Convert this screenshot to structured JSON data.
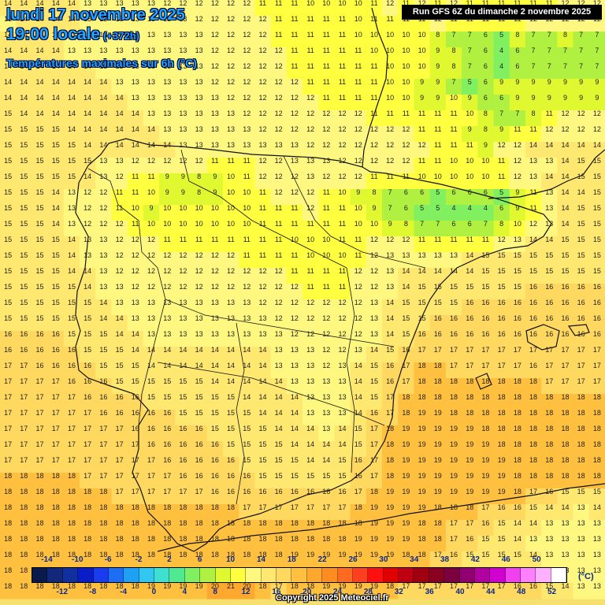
{
  "header": {
    "date": "lundi 17 novembre 2025",
    "time": "19:00 locale",
    "offset": "(+372h)",
    "parameter": "Températures maximales sur 6h (°C)",
    "run": "Run GFS 6Z du dimanche 2 novembre 2025"
  },
  "legend": {
    "unit": "(°C)",
    "top_labels": [
      "-14",
      "-10",
      "-6",
      "-2",
      "2",
      "6",
      "10",
      "14",
      "18",
      "22",
      "26",
      "30",
      "34",
      "38",
      "42",
      "46",
      "50"
    ],
    "bottom_labels": [
      "-12",
      "-8",
      "-4",
      "0",
      "4",
      "8",
      "12",
      "16",
      "20",
      "24",
      "28",
      "32",
      "36",
      "40",
      "44",
      "48",
      "52"
    ],
    "colors": [
      "#0a1a4a",
      "#12287a",
      "#1030a0",
      "#0a1ec8",
      "#1a3cf0",
      "#1e6ef5",
      "#1ea0f5",
      "#30c8f0",
      "#40e0d0",
      "#50e890",
      "#80f060",
      "#b0f040",
      "#e0f830",
      "#ffff40",
      "#fff880",
      "#ffe870",
      "#ffd860",
      "#ffc040",
      "#ffa830",
      "#ff8c20",
      "#ff6a20",
      "#ff4020",
      "#ff1010",
      "#e00000",
      "#c00010",
      "#a00010",
      "#8a0020",
      "#7a0040",
      "#900070",
      "#b000a0",
      "#d000d0",
      "#f040f0",
      "#ff80ff",
      "#ffb0ff",
      "#ffffff"
    ]
  },
  "copyright": "Copyright 2025 Meteociel.fr",
  "map": {
    "grid_rows": [
      "14 14 14 14 14 13 13 13 13 13 12 12 12 12 12 12 11 11 11 10 10 10 10 11 12 11 12 11 12 11 11 11 11 11 11 12 12 12",
      "13 14 14 14 14 13 13 13 13 13 13 13 12 12 12 12 12 11 11 11 11 11 10 11 11 11 11 12 11 11 11 11 11 12 12 12 12 12",
      "14 14 14 14 13 13 13 13 13 13 13 13 13 12 12 12 12 11 11 11 11 11 10 10 10 10 10 8 7 7 6 5 8 7 7 8 7 7",
      "14 14 14 14 13 13 13 13 13 13 13 13 13 12 12 12 12 12 11 11 11 11 11 10 10 10 10 9 8 7 6 4 6 7 7 7 7 7",
      "14 14 14 14 14 14 13 13 13 13 13 13 13 12 12 12 12 12 11 11 11 11 11 11 10 10 10 9 8 7 6 4 6 7 7 7 7 7",
      "14 14 14 14 14 14 14 13 13 13 13 13 13 12 12 12 12 12 12 11 11 11 11 11 10 10 9 9 7 5 6 9 9 9 9 9 9 9",
      "14 14 14 14 14 14 14 14 13 13 13 13 13 13 12 12 12 12 12 12 11 11 11 11 10 10 9 9 10 9 6 6 9 9 9 9 9 9",
      "15 14 14 14 14 14 14 14 14 13 13 13 13 13 13 12 12 12 12 12 12 12 12 11 11 11 11 11 11 10 8 7 7 8 11 12 12 12",
      "15 15 15 15 14 14 14 14 14 14 13 13 13 13 13 13 12 12 12 12 12 12 12 12 12 12 11 11 11 9 8 9 11 11 12 12 12 12",
      "15 15 15 15 15 14 14 14 14 14 14 13 13 13 13 13 13 13 13 12 12 12 12 12 12 12 12 11 11 11 9 12 12 14 14 14 14 14",
      "15 15 15 15 15 15 13 13 12 12 12 12 12 11 11 11 12 12 13 13 13 12 12 12 12 12 11 11 10 10 10 11 12 13 13 14 15 15",
      "15 15 15 15 15 14 13 12 11 11 9 9 8 9 10 11 12 12 12 13 12 12 12 11 11 11 10 10 10 10 10 11 12 13 14 14 15 15",
      "15 15 15 14 13 12 12 11 11 10 9 9 8 9 10 10 11 12 12 12 11 10 9 8 7 6 6 5 6 6 6 5 9 11 13 14 14 15",
      "15 15 15 14 13 12 12 11 10 9 10 10 10 10 10 10 11 11 11 12 11 11 10 9 7 6 5 5 4 4 4 6 9 11 13 14 15 15",
      "15 15 15 14 13 12 12 12 11 10 10 10 10 10 10 10 11 11 11 11 11 11 10 10 9 8 7 7 6 6 7 8 10 12 13 14 15 15",
      "15 15 15 15 14 13 13 12 12 12 11 11 11 11 11 11 11 11 10 10 10 11 11 12 12 12 11 11 11 11 11 12 13 14 14 15 15 15",
      "15 15 15 15 14 13 13 12 12 12 12 12 12 12 12 11 11 11 11 10 10 10 11 12 13 13 13 13 13 14 15 15 15 15 15 15 15 15",
      "15 15 15 15 14 14 13 12 12 12 12 12 12 12 12 12 12 12 11 11 11 11 12 12 13 14 14 14 14 14 15 15 15 15 15 15 15 15",
      "15 15 15 15 15 14 13 13 12 12 12 12 12 12 12 12 12 12 12 11 11 11 12 12 13 14 15 15 15 15 15 15 15 16 16 16 16 16",
      "15 15 15 15 15 15 14 13 13 13 13 13 13 13 13 13 12 12 12 12 12 12 12 13 14 15 15 15 15 16 16 16 16 16 16 16 16 16",
      "15 15 15 15 15 15 14 14 13 13 13 13 13 13 13 13 13 12 12 12 12 12 12 13 14 15 15 16 16 16 16 16 16 16 16 16 16 16",
      "16 16 16 16 15 15 15 14 14 13 13 13 13 13 13 13 13 13 12 12 12 12 12 13 14 15 16 16 16 16 16 16 16 16 16 16 16 16",
      "16 16 16 16 16 15 15 15 14 14 14 14 14 14 14 14 14 13 13 13 12 12 13 14 15 16 17 17 17 17 17 17 17 17 17 17 17 17",
      "17 17 16 16 16 16 15 15 15 14 14 14 14 14 14 14 14 13 13 13 12 13 14 15 16 17 18 18 17 17 17 17 17 16 17 17 17 17",
      "17 17 17 17 16 16 16 15 15 15 15 15 15 14 14 14 14 14 13 13 13 13 14 15 16 17 18 18 18 18 18 18 18 18 17 17 17 17",
      "17 17 17 17 17 16 16 16 16 15 15 15 15 15 15 14 14 14 14 13 13 13 14 15 17 18 18 18 18 18 18 18 18 18 18 18 18 18",
      "17 17 17 17 17 17 16 16 16 16 16 15 15 15 15 15 14 14 14 13 13 13 14 16 17 18 19 19 18 18 18 18 18 18 18 18 18 18",
      "17 17 17 17 17 17 17 17 16 16 16 16 16 15 15 15 15 14 14 14 13 14 15 17 18 19 19 19 19 19 18 18 18 18 18 18 18 18",
      "17 17 17 17 17 17 17 17 17 16 16 16 16 16 15 15 15 15 14 14 14 14 15 17 18 19 19 19 19 19 19 18 18 18 18 18 18 18",
      "17 17 17 17 17 17 17 17 17 17 16 16 16 16 16 15 15 15 15 14 14 15 16 17 18 19 19 19 19 19 19 19 18 18 18 18 18 18",
      "18 18 18 18 18 17 17 17 17 17 17 16 16 16 16 16 15 15 15 15 15 15 16 17 18 19 19 19 19 19 19 19 18 18 18 18 18 18",
      "18 18 18 18 18 18 18 17 17 17 17 17 17 16 16 16 16 16 16 16 16 16 17 18 19 19 19 19 19 19 19 19 18 17 16 15 15 15",
      "18 18 18 18 18 18 18 18 18 18 18 18 18 18 18 17 17 17 17 17 17 17 18 19 19 19 19 18 18 18 17 16 16 15 14 14 13 14",
      "18 18 18 18 18 18 18 18 18 18 18 18 18 18 18 18 18 18 18 18 18 18 18 19 19 19 18 18 17 17 16 15 14 14 13 13 13 13",
      "18 18 18 18 18 18 18 18 18 18 18 18 18 18 18 18 18 18 18 18 18 18 19 19 19 19 18 18 17 16 15 15 14 13 13 13 13 13",
      "18 18 18 18 18 18 18 18 18 18 18 18 18 18 18 18 18 18 19 19 19 19 19 19 19 18 18 17 16 15 15 15 15 14 13 13 13 13",
      "18 18 18 18 18 18 18 18 18 18 18 18 18 18 18 18 18 18 18 19 19 19 19 19 19 18 17 16 16 16 16 16 15 15 14 13 13 13",
      "18 18 18 18 18 18 18 18 18 19 19 19 19 20 21 20 18 17 18 18 19 19 19 19 18 17 17 17 17 17 17 17 16 16 15 14 13 13"
    ]
  }
}
